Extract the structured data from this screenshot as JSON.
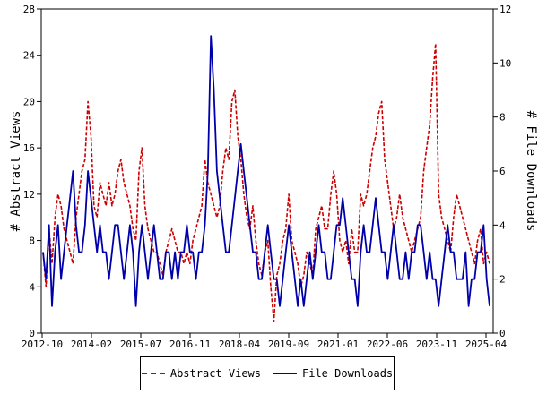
{
  "chart_data": {
    "type": "line",
    "y_left": {
      "label": "# Abstract Views",
      "range": [
        0,
        28
      ],
      "ticks": [
        0,
        4,
        8,
        12,
        16,
        20,
        24,
        28
      ]
    },
    "y_right": {
      "label": "# File Downloads",
      "range": [
        0,
        12
      ],
      "ticks": [
        0,
        2,
        4,
        6,
        8,
        10,
        12
      ]
    },
    "x_ticks": [
      "2012-10",
      "2014-02",
      "2015-07",
      "2016-11",
      "2018-04",
      "2019-09",
      "2021-01",
      "2022-06",
      "2023-11",
      "2025-04"
    ],
    "grid": false,
    "legend_position": "bottom",
    "series": [
      {
        "name": "Abstract Views",
        "axis": "left",
        "color": "#cc0000",
        "style": "dashed",
        "x_ticks_domain": [
          0,
          150
        ],
        "values": [
          7,
          4,
          9,
          6,
          10,
          12,
          11,
          9,
          8,
          7,
          6,
          10,
          12,
          14,
          15,
          20,
          17,
          11,
          10,
          13,
          12,
          11,
          13,
          11,
          12,
          14,
          15,
          13,
          12,
          11,
          9,
          8,
          14,
          16,
          11,
          9,
          8,
          7,
          7,
          6,
          5,
          7,
          8,
          9,
          8,
          7,
          7,
          6,
          7,
          6,
          8,
          9,
          10,
          11,
          15,
          13,
          12,
          11,
          10,
          11,
          14,
          16,
          15,
          20,
          21,
          17,
          15,
          12,
          10,
          9,
          11,
          8,
          6,
          5,
          7,
          8,
          4,
          1,
          5,
          6,
          8,
          9,
          12,
          8,
          7,
          6,
          4,
          5,
          7,
          6,
          5,
          9,
          10,
          11,
          9,
          9,
          12,
          14,
          12,
          8,
          7,
          8,
          6,
          9,
          7,
          7,
          12,
          11,
          12,
          14,
          16,
          17,
          19,
          20,
          15,
          13,
          11,
          9,
          10,
          12,
          10,
          9,
          8,
          7,
          8,
          9,
          10,
          14,
          16,
          18,
          22,
          25,
          12,
          10,
          9,
          8,
          7,
          10,
          12,
          11,
          10,
          9,
          8,
          7,
          6,
          8,
          9,
          6,
          7,
          6
        ]
      },
      {
        "name": "File Downloads",
        "axis": "right",
        "color": "#0000aa",
        "style": "solid",
        "values": [
          3,
          2,
          4,
          1,
          3,
          4,
          2,
          3,
          4,
          5,
          6,
          4,
          3,
          3,
          4,
          6,
          5,
          4,
          3,
          4,
          3,
          3,
          2,
          3,
          4,
          4,
          3,
          2,
          3,
          4,
          3,
          1,
          3,
          4,
          3,
          2,
          3,
          4,
          3,
          2,
          2,
          3,
          3,
          2,
          3,
          2,
          3,
          3,
          4,
          3,
          3,
          2,
          3,
          3,
          4,
          6,
          11,
          9,
          6,
          5,
          4,
          3,
          3,
          4,
          5,
          6,
          7,
          6,
          5,
          4,
          3,
          3,
          2,
          2,
          3,
          4,
          3,
          2,
          2,
          1,
          2,
          3,
          4,
          3,
          2,
          1,
          2,
          1,
          2,
          3,
          2,
          3,
          4,
          3,
          3,
          2,
          2,
          3,
          4,
          4,
          5,
          4,
          3,
          2,
          2,
          1,
          3,
          4,
          3,
          3,
          4,
          5,
          4,
          3,
          3,
          2,
          3,
          4,
          3,
          2,
          2,
          3,
          2,
          3,
          3,
          4,
          4,
          3,
          2,
          3,
          2,
          2,
          1,
          2,
          3,
          4,
          3,
          3,
          2,
          2,
          2,
          3,
          1,
          2,
          2,
          3,
          3,
          4,
          2,
          1
        ]
      }
    ]
  }
}
